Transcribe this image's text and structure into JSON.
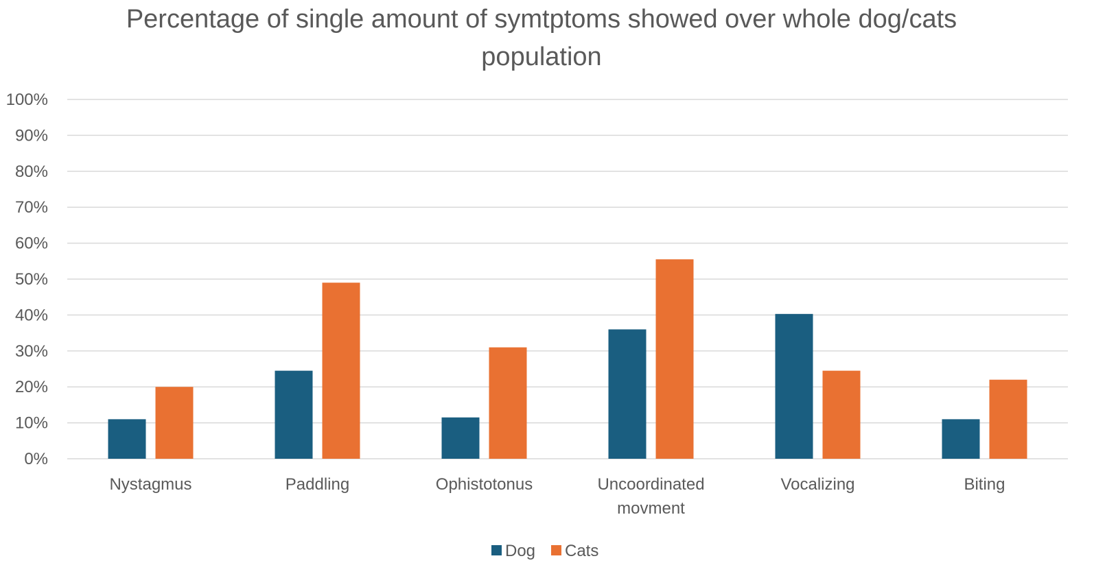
{
  "chart_data": {
    "type": "bar",
    "title": "Percentage of single amount of symtptoms showed over whole dog/cats population",
    "title_lines": [
      "Percentage of single amount of symtptoms showed over whole dog/cats",
      "population"
    ],
    "categories": [
      "Nystagmus",
      "Paddling",
      "Ophistotonus",
      "Uncoordinated movment",
      "Vocalizing",
      "Biting"
    ],
    "category_lines": [
      [
        "Nystagmus"
      ],
      [
        "Paddling"
      ],
      [
        "Ophistotonus"
      ],
      [
        "Uncoordinated",
        "movment"
      ],
      [
        "Vocalizing"
      ],
      [
        "Biting"
      ]
    ],
    "series": [
      {
        "name": "Dog",
        "color": "#1a5e80",
        "values": [
          11,
          24.5,
          11.5,
          36,
          40.3,
          11
        ]
      },
      {
        "name": "Cats",
        "color": "#e97132",
        "values": [
          20,
          49,
          31,
          55.5,
          24.5,
          22
        ]
      }
    ],
    "ylim": [
      0,
      100
    ],
    "yticks": [
      "0%",
      "10%",
      "20%",
      "30%",
      "40%",
      "50%",
      "60%",
      "70%",
      "80%",
      "90%",
      "100%"
    ],
    "xlabel": "",
    "ylabel": "",
    "grid": true,
    "legend_position": "bottom-center"
  }
}
